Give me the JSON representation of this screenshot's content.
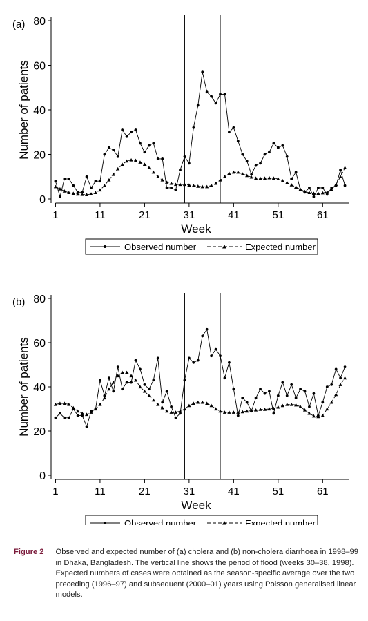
{
  "chart_data": [
    {
      "type": "line",
      "panel_label": "(a)",
      "xlabel": "Week",
      "ylabel": "Number of patients",
      "xlim": [
        0,
        67
      ],
      "ylim": [
        0,
        80
      ],
      "xticks": [
        1,
        11,
        21,
        31,
        41,
        51,
        61
      ],
      "yticks": [
        0,
        20,
        40,
        60,
        80
      ],
      "vlines": [
        30,
        38
      ],
      "legend_position": "bottom",
      "x": [
        1,
        2,
        3,
        4,
        5,
        6,
        7,
        8,
        9,
        10,
        11,
        12,
        13,
        14,
        15,
        16,
        17,
        18,
        19,
        20,
        21,
        22,
        23,
        24,
        25,
        26,
        27,
        28,
        29,
        30,
        31,
        32,
        33,
        34,
        35,
        36,
        37,
        38,
        39,
        40,
        41,
        42,
        43,
        44,
        45,
        46,
        47,
        48,
        49,
        50,
        51,
        52,
        53,
        54,
        55,
        56,
        57,
        58,
        59,
        60,
        61,
        62,
        63,
        64,
        65,
        66
      ],
      "series": [
        {
          "name": "Observed number",
          "marker": "circle",
          "dash": "solid",
          "values": [
            8,
            1,
            9,
            9,
            6,
            3,
            3,
            10,
            5,
            8,
            8,
            20,
            23,
            22,
            19,
            31,
            28,
            30,
            31,
            25,
            21,
            24,
            25,
            18,
            18,
            5,
            5,
            4,
            13,
            19,
            16,
            32,
            42,
            57,
            48,
            46,
            43,
            47,
            47,
            30,
            32,
            26,
            20,
            17,
            11,
            15,
            16,
            20,
            21,
            25,
            23,
            24,
            19,
            9,
            12,
            4,
            3,
            5,
            1,
            5,
            5,
            2,
            5,
            6,
            13,
            6
          ]
        },
        {
          "name": "Expected number",
          "marker": "triangle",
          "dash": "dashed",
          "values": [
            5.5,
            4.5,
            3.5,
            2.8,
            2.5,
            2.1,
            2.0,
            1.9,
            2.2,
            2.8,
            4.0,
            6.0,
            8.5,
            11.0,
            13.5,
            15.5,
            17.0,
            17.5,
            17.3,
            16.5,
            15.5,
            14.0,
            12.0,
            10.0,
            8.5,
            7.5,
            7.0,
            6.5,
            6.5,
            6.5,
            6.2,
            6.0,
            5.7,
            5.5,
            5.5,
            6.0,
            7.0,
            8.5,
            10.0,
            11.5,
            12.0,
            12.0,
            11.2,
            10.5,
            9.8,
            9.3,
            9.2,
            9.3,
            9.5,
            9.3,
            9.0,
            8.2,
            7.3,
            6.3,
            5.3,
            4.3,
            3.3,
            2.8,
            2.5,
            2.5,
            2.7,
            3.0,
            4.2,
            6.5,
            10.0,
            14.0
          ]
        }
      ]
    },
    {
      "type": "line",
      "panel_label": "(b)",
      "xlabel": "Week",
      "ylabel": "Number of patients",
      "xlim": [
        0,
        67
      ],
      "ylim": [
        0,
        80
      ],
      "xticks": [
        1,
        11,
        21,
        31,
        41,
        51,
        61
      ],
      "yticks": [
        0,
        20,
        40,
        60,
        80
      ],
      "vlines": [
        30,
        38
      ],
      "legend_position": "bottom",
      "x": [
        1,
        2,
        3,
        4,
        5,
        6,
        7,
        8,
        9,
        10,
        11,
        12,
        13,
        14,
        15,
        16,
        17,
        18,
        19,
        20,
        21,
        22,
        23,
        24,
        25,
        26,
        27,
        28,
        29,
        30,
        31,
        32,
        33,
        34,
        35,
        36,
        37,
        38,
        39,
        40,
        41,
        42,
        43,
        44,
        45,
        46,
        47,
        48,
        49,
        50,
        51,
        52,
        53,
        54,
        55,
        56,
        57,
        58,
        59,
        60,
        61,
        62,
        63,
        64,
        65,
        66
      ],
      "series": [
        {
          "name": "Observed number",
          "marker": "circle",
          "dash": "solid",
          "values": [
            26,
            28,
            26,
            26,
            30,
            27,
            27,
            22,
            29,
            30,
            43,
            36,
            44,
            38,
            49,
            39,
            42,
            42,
            52,
            48,
            41,
            39,
            43,
            53,
            33,
            38,
            31,
            26,
            28,
            43,
            53,
            51,
            52,
            63,
            66,
            54,
            57,
            54,
            44,
            51,
            39,
            27,
            35,
            33,
            29,
            35,
            39,
            37,
            38,
            28,
            36,
            42,
            36,
            41,
            35,
            39,
            38,
            31,
            37,
            27,
            33,
            40,
            41,
            48,
            44,
            49
          ]
        },
        {
          "name": "Expected number",
          "marker": "triangle",
          "dash": "dashed",
          "values": [
            32,
            32.5,
            32.5,
            32,
            30.5,
            29,
            28,
            27.5,
            28.5,
            30,
            32,
            35,
            39,
            42,
            45,
            46.5,
            46.5,
            45,
            43,
            40,
            38,
            36,
            34,
            32,
            30.5,
            29,
            28.5,
            28.5,
            29,
            30,
            31.5,
            32.5,
            33,
            33,
            32.5,
            31.5,
            30,
            29,
            28.5,
            28.5,
            28.5,
            28.5,
            28.7,
            29,
            29.2,
            29.5,
            29.8,
            29.8,
            30,
            30.2,
            30.8,
            31.5,
            32,
            32,
            31.8,
            31,
            29.5,
            28,
            26.8,
            26.5,
            27,
            30,
            33,
            36.5,
            41,
            44
          ]
        }
      ]
    }
  ],
  "caption": {
    "label": "Figure 2",
    "text": "Observed and expected number of (a) cholera and (b) non-cholera diarrhoea in 1998–99 in Dhaka, Bangladesh. The vertical line shows the period of flood (weeks 30–38, 1998). Expected numbers of cases were obtained as the season-specific average over the two preceding (1996–97) and subsequent (2000–01) years using Poisson generalised linear models."
  }
}
